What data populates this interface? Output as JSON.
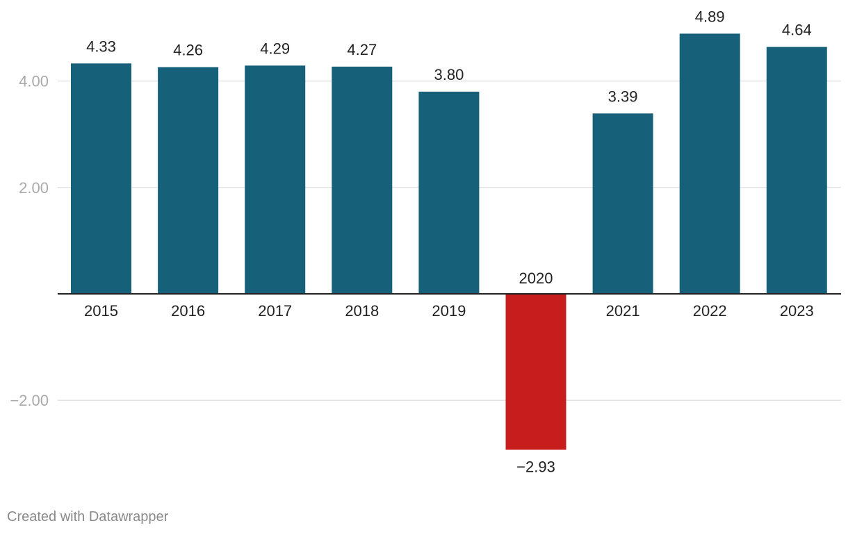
{
  "chart_data": {
    "type": "bar",
    "title": "",
    "xlabel": "",
    "ylabel": "",
    "categories": [
      "2015",
      "2016",
      "2017",
      "2018",
      "2019",
      "2020",
      "2021",
      "2022",
      "2023"
    ],
    "values": [
      4.33,
      4.26,
      4.29,
      4.27,
      3.8,
      -2.93,
      3.39,
      4.89,
      4.64
    ],
    "value_labels": [
      "4.33",
      "4.26",
      "4.29",
      "4.27",
      "3.80",
      "−2.93",
      "3.39",
      "4.89",
      "4.64"
    ],
    "ylim": [
      -3.2,
      5.2
    ],
    "yticks": [
      -2,
      2,
      4
    ],
    "ytick_labels": [
      "−2.00",
      "2.00",
      "4.00"
    ],
    "grid": true,
    "legend": "none",
    "colors": {
      "positive": "#17607a",
      "negative": "#c71e1d",
      "gridline": "#e3e3e3",
      "baseline": "#222222",
      "tick_text": "#aaaaaa",
      "label_text": "#222222"
    }
  },
  "footer": {
    "credit": "Created with Datawrapper"
  }
}
